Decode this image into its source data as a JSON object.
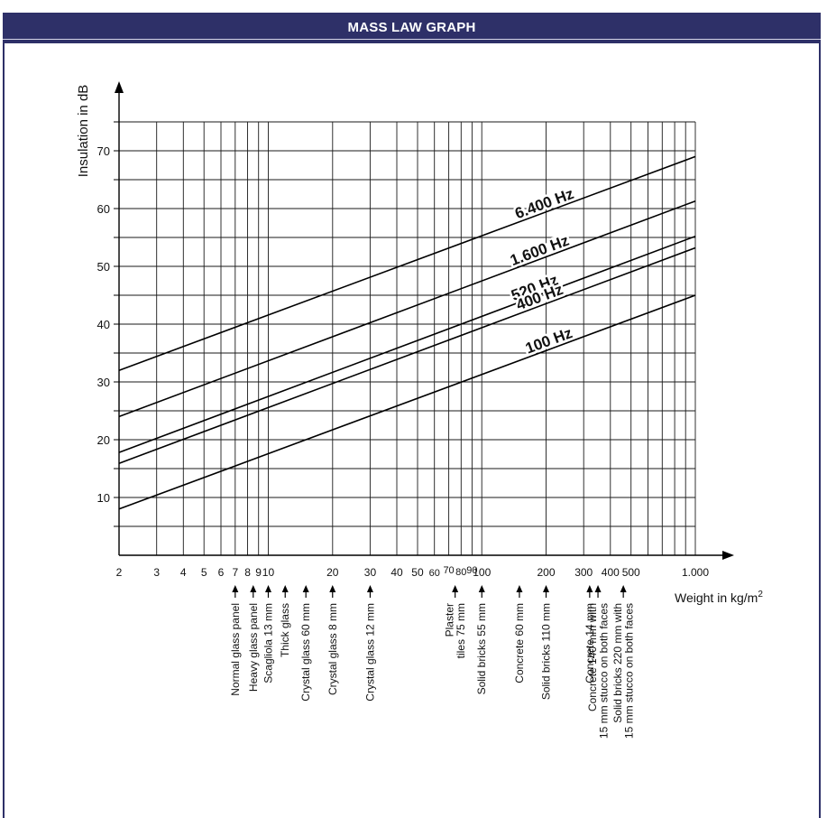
{
  "header": {
    "title": "MASS LAW GRAPH"
  },
  "chart_data": {
    "type": "line",
    "title": "MASS LAW GRAPH",
    "xlabel_base": "Weight in kg/m",
    "xlabel_sup": "2",
    "ylabel": "Insulation in dB",
    "xscale": "log",
    "xlim": [
      2,
      1000
    ],
    "ylim": [
      0,
      75
    ],
    "grid": true,
    "x_ticks": [
      2,
      3,
      4,
      5,
      6,
      7,
      8,
      9,
      10,
      20,
      30,
      40,
      50,
      60,
      70,
      80,
      90,
      100,
      200,
      300,
      400,
      500,
      1000
    ],
    "x_tick_labels": [
      "2",
      "3",
      "4",
      "5",
      "6",
      "7",
      "8",
      "9",
      "10",
      "20",
      "30",
      "40",
      "50",
      "60",
      "70",
      "80",
      "90",
      "100",
      "200",
      "300",
      "400",
      "500",
      "1.000"
    ],
    "y_ticks": [
      10,
      20,
      30,
      40,
      50,
      60,
      70
    ],
    "y_tick_labels": [
      "10",
      "20",
      "30",
      "40",
      "50",
      "60",
      "70"
    ],
    "series": [
      {
        "name": "6.400 Hz",
        "x": [
          2,
          1000
        ],
        "y": [
          32,
          69
        ]
      },
      {
        "name": "1.600 Hz",
        "x": [
          2,
          1000
        ],
        "y": [
          24,
          61.3
        ]
      },
      {
        "name": "520 Hz",
        "x": [
          2,
          1000
        ],
        "y": [
          17.8,
          55.2
        ]
      },
      {
        "name": "400 Hz",
        "x": [
          2,
          1000
        ],
        "y": [
          15.9,
          53.2
        ]
      },
      {
        "name": "100 Hz",
        "x": [
          2,
          1000
        ],
        "y": [
          8,
          45
        ]
      }
    ],
    "series_label_at": [
      {
        "name": "6.400 Hz",
        "x": 200
      },
      {
        "name": "1.600 Hz",
        "x": 190
      },
      {
        "name": "520 Hz",
        "x": 180
      },
      {
        "name": "400 Hz",
        "x": 190
      },
      {
        "name": "100 Hz",
        "x": 210
      }
    ],
    "annotations": [
      {
        "x": 7,
        "lines": [
          "Normal glass panel"
        ]
      },
      {
        "x": 8.5,
        "lines": [
          "Heavy glass panel"
        ]
      },
      {
        "x": 10,
        "lines": [
          "Scagliola 13 mm"
        ]
      },
      {
        "x": 12,
        "lines": [
          "Thick glass"
        ]
      },
      {
        "x": 15,
        "lines": [
          "Crystal glass 60 mm"
        ]
      },
      {
        "x": 20,
        "lines": [
          "Crystal glass 8 mm"
        ]
      },
      {
        "x": 30,
        "lines": [
          "Crystal glass 12 mm"
        ]
      },
      {
        "x": 75,
        "lines": [
          "Plaster",
          "tiles 75 mm"
        ]
      },
      {
        "x": 100,
        "lines": [
          "Solid bricks 55 mm"
        ]
      },
      {
        "x": 150,
        "lines": [
          "Concrete 60 mm"
        ]
      },
      {
        "x": 200,
        "lines": [
          "Solid bricks 110 mm"
        ]
      },
      {
        "x": 320,
        "lines": [
          "Concrete 14 mm"
        ]
      },
      {
        "x": 350,
        "lines": [
          "Concrete 140 mm with",
          "15 mm stucco on both faces"
        ]
      },
      {
        "x": 460,
        "lines": [
          "Solid bricks 220 mm with",
          "15 mm stucco on both faces"
        ]
      }
    ]
  }
}
